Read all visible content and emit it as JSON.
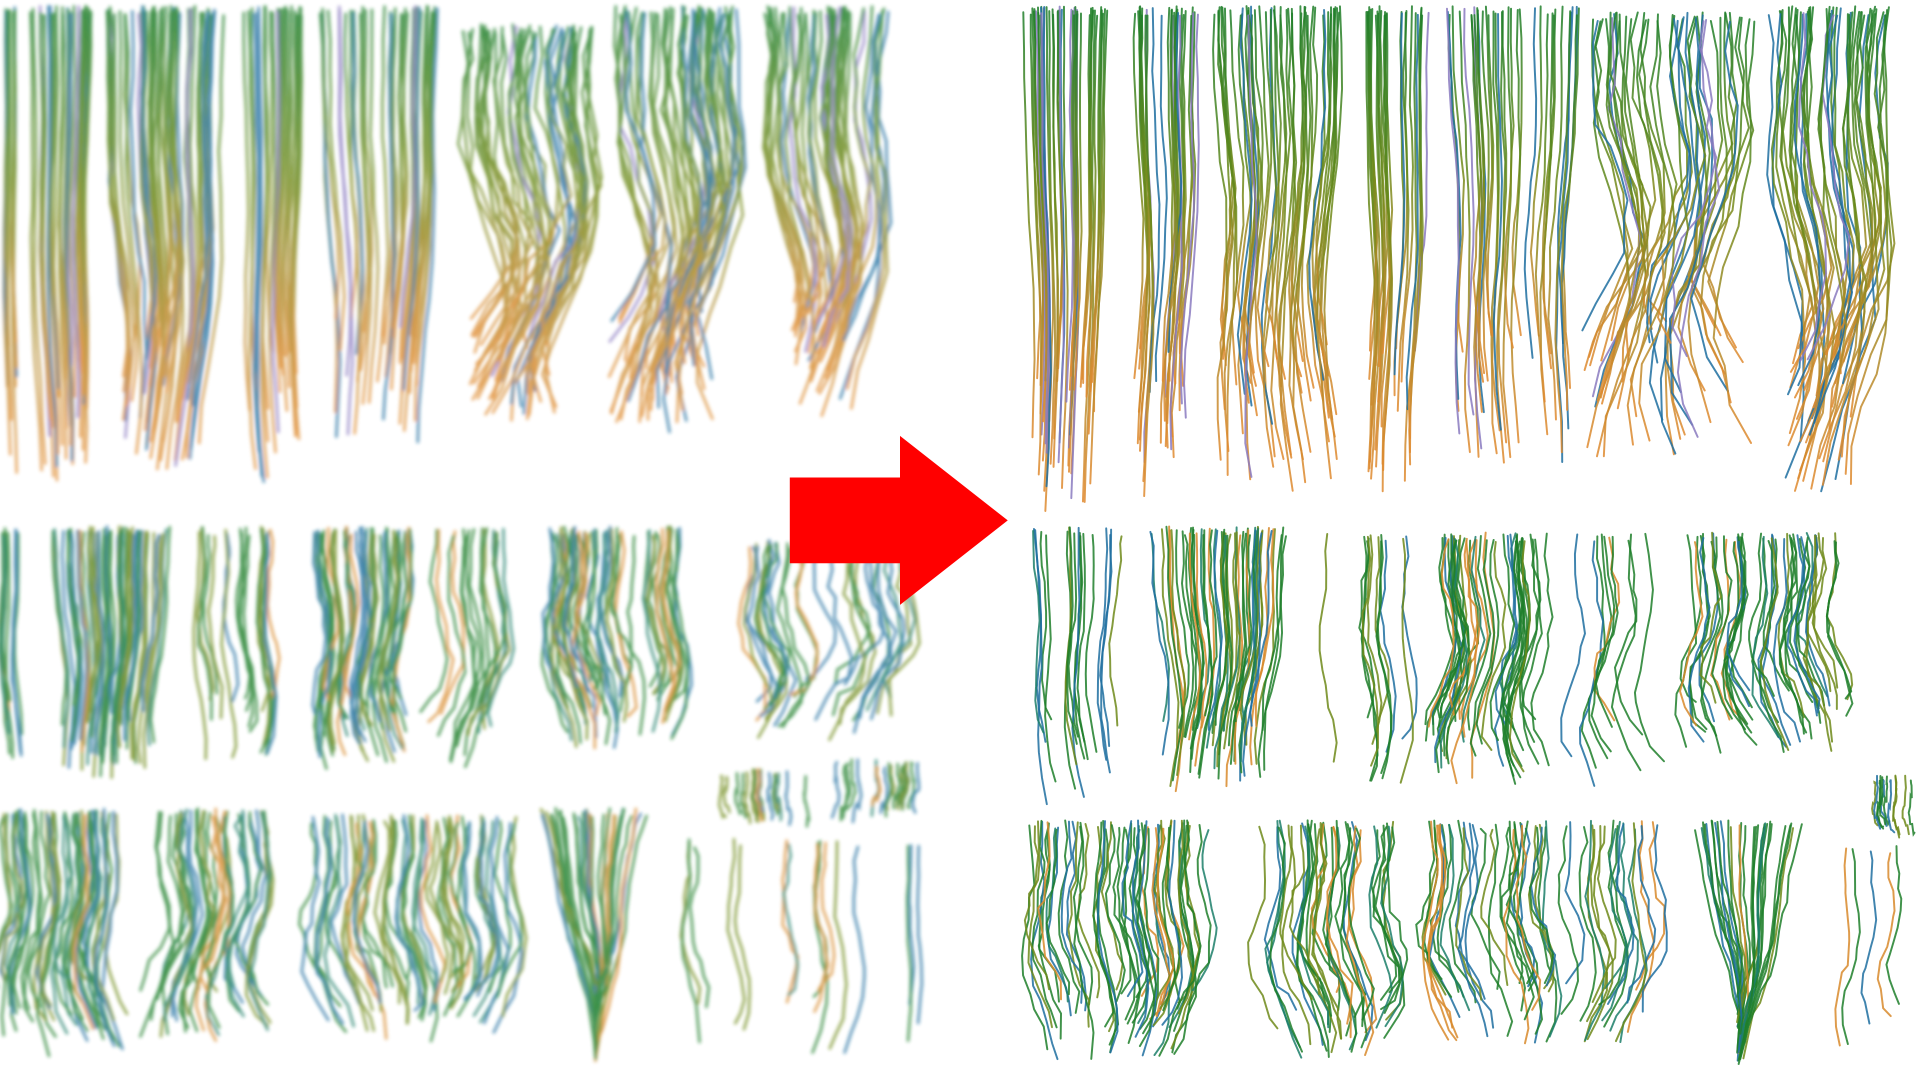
{
  "figure": {
    "panels": [
      {
        "id": "left",
        "description_style": "blurry"
      },
      {
        "id": "right",
        "description_style": "sharp"
      }
    ],
    "arrow": {
      "direction": "right",
      "color": "#ff0000",
      "icon": "arrow-right-icon"
    },
    "colors": {
      "background": "#ffffff",
      "hair_green": "#1f7f2a",
      "hair_olive": "#6f8a1a",
      "hair_orange": "#d88a2c",
      "hair_blue": "#1f6fa0",
      "hair_purple": "#8a7ac0",
      "hair_teal": "#1c7f6a"
    }
  }
}
